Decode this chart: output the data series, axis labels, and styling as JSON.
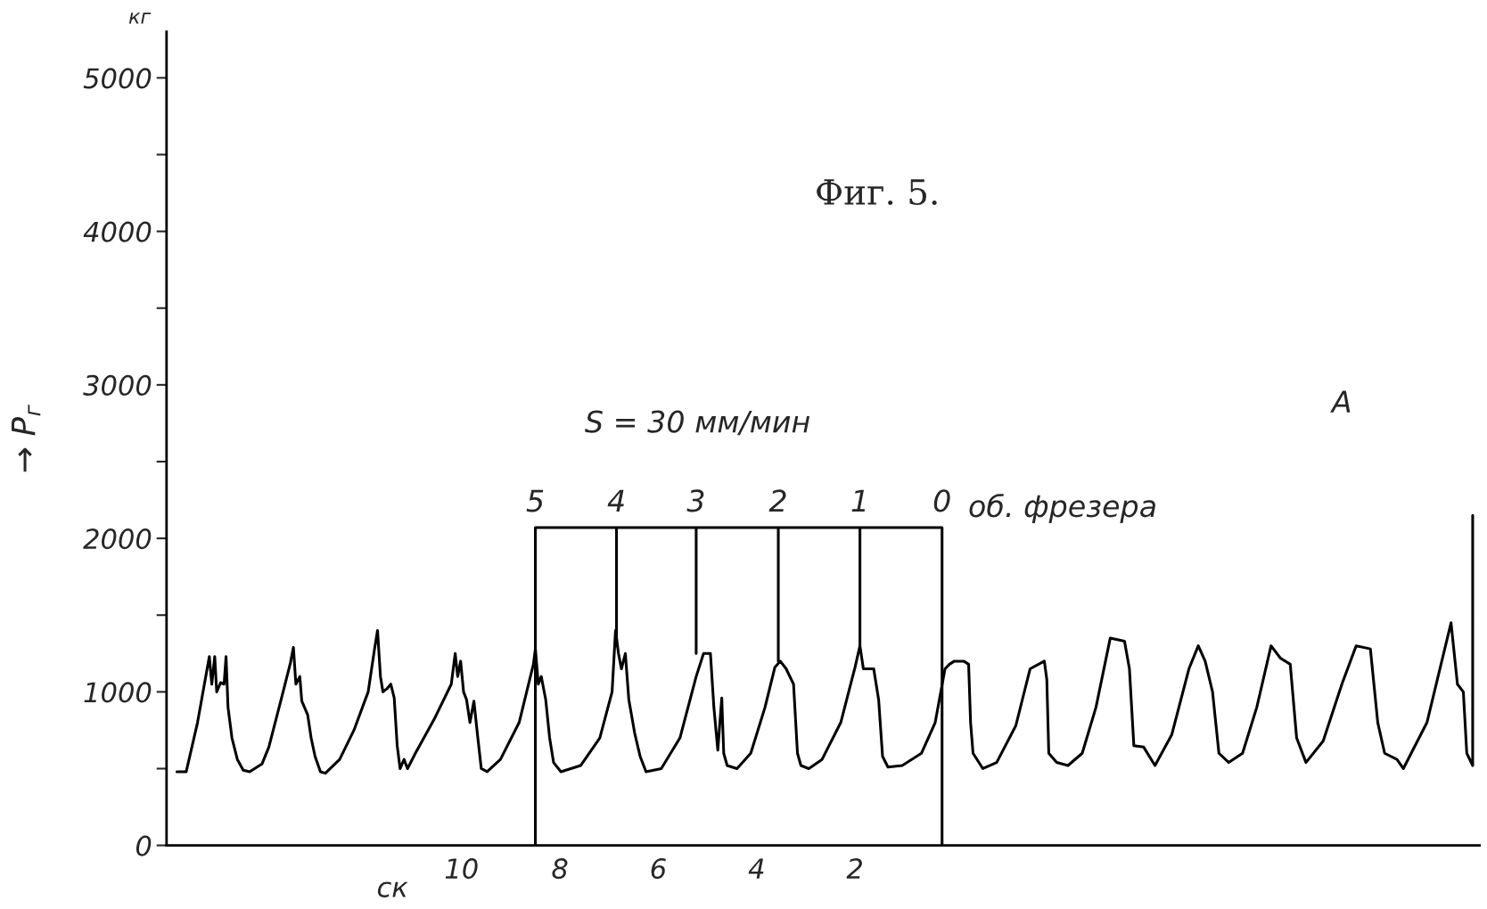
{
  "chart_data": {
    "type": "line",
    "title": "Фиг. 5.",
    "xlabel": "ск",
    "ylabel": "→ P$_{г}$",
    "xlim": [
      16.0,
      -10.7
    ],
    "xticks": [
      10,
      8,
      6,
      4,
      2
    ],
    "ylim": [
      0,
      5300
    ],
    "yticks": [
      0,
      {
        "value": 500,
        "label": null
      },
      1000,
      {
        "value": 1500,
        "label": null
      },
      2000,
      {
        "value": 2500,
        "label": null
      },
      3000,
      {
        "value": 3500,
        "label": null
      },
      4000,
      {
        "value": 4500,
        "label": null
      },
      5000
    ],
    "grid": false,
    "legend": false,
    "marker": "none",
    "line_style": "solid",
    "series": [
      {
        "color": "#000000",
        "x": [
          15.79,
          15.6,
          15.37,
          15.13,
          15.08,
          15.02,
          14.98,
          14.9,
          14.83,
          14.79,
          14.75,
          14.67,
          14.56,
          14.44,
          14.31,
          14.06,
          13.92,
          13.63,
          13.48,
          13.42,
          13.37,
          13.29,
          13.25,
          13.13,
          13.06,
          12.98,
          12.87,
          12.77,
          12.48,
          12.19,
          11.9,
          11.77,
          11.71,
          11.65,
          11.6,
          11.52,
          11.44,
          11.37,
          11.31,
          11.25,
          11.17,
          11.1,
          10.94,
          10.56,
          10.21,
          10.13,
          10.08,
          10.02,
          9.96,
          9.9,
          9.83,
          9.75,
          9.67,
          9.6,
          9.48,
          9.21,
          8.83,
          8.54,
          8.5,
          8.44,
          8.38,
          8.29,
          8.21,
          8.13,
          7.98,
          7.58,
          7.19,
          6.94,
          6.87,
          6.81,
          6.75,
          6.67,
          6.6,
          6.48,
          6.37,
          6.25,
          5.94,
          5.56,
          5.23,
          5.08,
          4.94,
          4.87,
          4.79,
          4.71,
          4.67,
          4.6,
          4.4,
          4.12,
          3.83,
          3.63,
          3.52,
          3.4,
          3.25,
          3.17,
          3.1,
          2.94,
          2.67,
          2.29,
          2.0,
          1.9,
          1.83,
          1.62,
          1.52,
          1.44,
          1.33,
          1.04,
          0.65,
          0.37,
          0.17,
          0.08,
          -0.02,
          -0.21,
          -0.31,
          -0.35,
          -0.4,
          -0.6,
          -0.88,
          -1.27,
          -1.56,
          -1.85,
          -1.9,
          -1.94,
          -2.1,
          -2.33,
          -2.62,
          -2.9,
          -3.19,
          -3.48,
          -3.58,
          -3.67,
          -3.87,
          -4.1,
          -4.44,
          -4.79,
          -4.98,
          -5.12,
          -5.27,
          -5.4,
          -5.6,
          -5.88,
          -6.17,
          -6.46,
          -6.65,
          -6.85,
          -6.98,
          -7.17,
          -7.52,
          -7.9,
          -8.19,
          -8.48,
          -8.63,
          -8.77,
          -9.02,
          -9.15,
          -9.63,
          -10.12,
          -10.25,
          -10.37,
          -10.44,
          -10.56,
          -10.56
        ],
        "values": [
          480,
          480,
          800,
          1230,
          1050,
          1230,
          1000,
          1060,
          1050,
          1230,
          900,
          700,
          560,
          490,
          480,
          530,
          640,
          1000,
          1190,
          1290,
          1050,
          1100,
          940,
          850,
          700,
          580,
          480,
          470,
          560,
          750,
          1000,
          1280,
          1400,
          1100,
          1000,
          1020,
          1050,
          960,
          650,
          500,
          560,
          500,
          600,
          820,
          1050,
          1250,
          1100,
          1200,
          1000,
          950,
          800,
          940,
          700,
          500,
          480,
          560,
          800,
          1180,
          1280,
          1050,
          1100,
          950,
          700,
          540,
          480,
          520,
          700,
          1000,
          1400,
          1250,
          1150,
          1250,
          950,
          730,
          580,
          480,
          500,
          700,
          1100,
          1250,
          1250,
          900,
          620,
          960,
          600,
          520,
          500,
          600,
          900,
          1160,
          1200,
          1150,
          1050,
          600,
          520,
          500,
          560,
          800,
          1160,
          1300,
          1150,
          1150,
          950,
          580,
          510,
          520,
          600,
          800,
          1150,
          1180,
          1200,
          1200,
          1180,
          800,
          600,
          500,
          540,
          780,
          1150,
          1200,
          1080,
          600,
          540,
          520,
          600,
          900,
          1350,
          1330,
          1150,
          650,
          640,
          520,
          720,
          1150,
          1300,
          1200,
          1000,
          600,
          540,
          600,
          900,
          1300,
          1220,
          1180,
          700,
          540,
          680,
          1050,
          1300,
          1280,
          800,
          600,
          560,
          500,
          800,
          1450,
          1050,
          1000,
          600,
          520,
          2150
        ]
      },
      {
        "color": "#000000",
        "x": [
          8.5,
          8.5,
          6.85,
          6.85,
          6.85,
          5.23,
          5.23,
          5.23,
          3.56,
          3.56,
          3.56,
          1.9,
          1.9,
          1.9,
          0.23,
          0.23
        ],
        "values": [
          0,
          2070,
          2070,
          1300,
          2070,
          2070,
          1250,
          2070,
          2070,
          1200,
          2070,
          2070,
          1300,
          2070,
          2070,
          0
        ]
      }
    ],
    "annotations": [
      {
        "text": "5",
        "x": 8.5,
        "y": 2070
      },
      {
        "text": "4",
        "x": 6.85,
        "y": 2070
      },
      {
        "text": "3",
        "x": 5.23,
        "y": 2070
      },
      {
        "text": "2",
        "x": 3.56,
        "y": 2070
      },
      {
        "text": "1",
        "x": 1.9,
        "y": 2070
      },
      {
        "text": "0",
        "x": 0.23,
        "y": 2070
      },
      "об. фрезера",
      "S = 30 мм/мин",
      "A",
      "кг"
    ]
  }
}
